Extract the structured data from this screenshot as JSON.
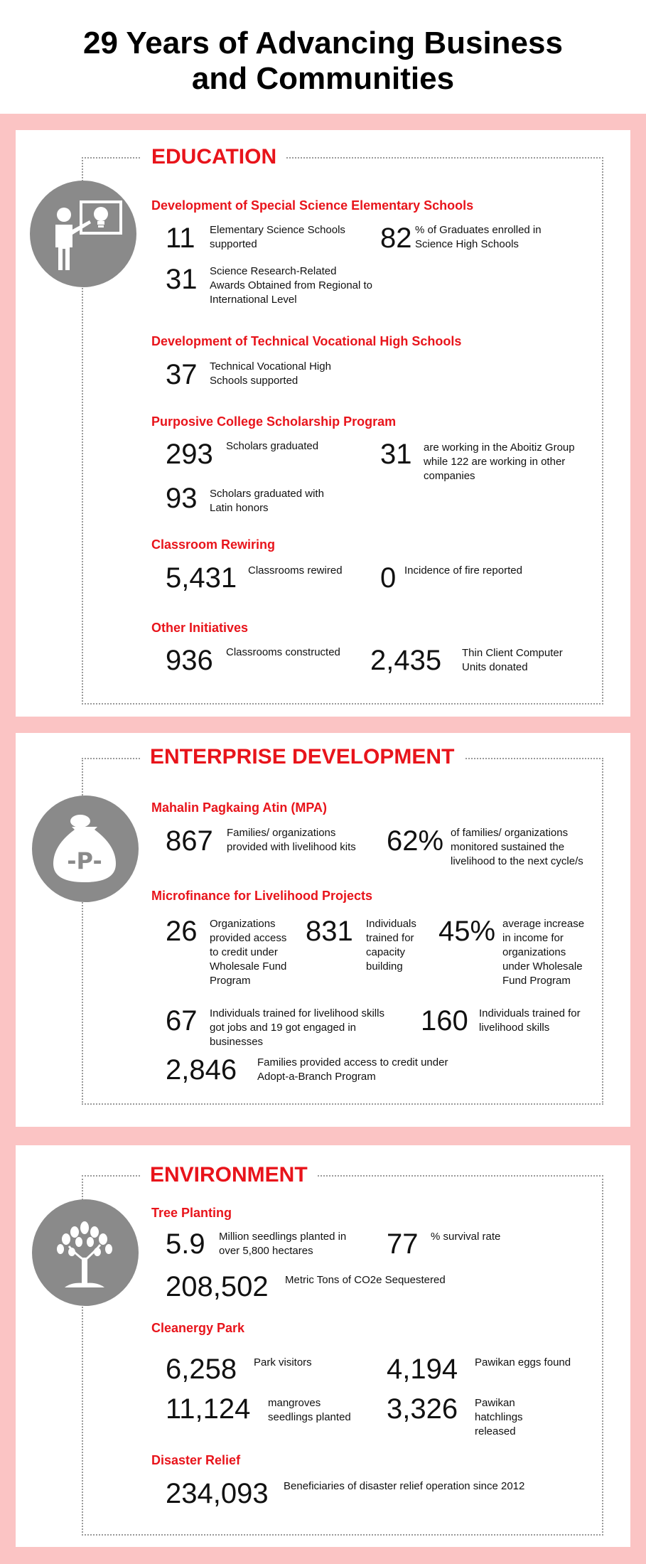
{
  "title": {
    "line1": "29 Years of Advancing Business",
    "line2": "and Communities"
  },
  "icons": {
    "education": "teacher-icon",
    "enterprise": "money-bag-icon",
    "environment": "tree-icon"
  },
  "colors": {
    "accent": "#e8141b",
    "background": "#fbc4c4",
    "icon_circle": "#8a8a8a"
  },
  "education": {
    "title": "EDUCATION",
    "special_science": {
      "heading": "Development of Special Science Elementary Schools",
      "stats": [
        {
          "value": "11",
          "label": "Elementary Science  Schools supported"
        },
        {
          "value": "82",
          "label": "% of Graduates enrolled in Science High Schools"
        },
        {
          "value": "31",
          "label": "Science Research-Related Awards Obtained from Regional to International Level"
        }
      ]
    },
    "techvoc": {
      "heading": "Development of Technical Vocational High Schools",
      "stats": [
        {
          "value": "37",
          "label": "Technical Vocational High Schools supported"
        }
      ]
    },
    "scholarship": {
      "heading": "Purposive College Scholarship Program",
      "stats": [
        {
          "value": "293",
          "label": "Scholars graduated"
        },
        {
          "value": "31",
          "label": "are working in the Aboitiz Group while 122 are working in other companies"
        },
        {
          "value": "93",
          "label": "Scholars graduated with Latin honors"
        }
      ]
    },
    "rewiring": {
      "heading": "Classroom Rewiring",
      "stats": [
        {
          "value": "5,431",
          "label": "Classrooms rewired"
        },
        {
          "value": "0",
          "label": "Incidence of fire reported"
        }
      ]
    },
    "other": {
      "heading": "Other Initiatives",
      "stats": [
        {
          "value": "936",
          "label": "Classrooms constructed"
        },
        {
          "value": "2,435",
          "label": "Thin Client Computer Units donated"
        }
      ]
    }
  },
  "enterprise": {
    "title": "ENTERPRISE DEVELOPMENT",
    "mpa": {
      "heading": "Mahalin Pagkaing Atin (MPA)",
      "stats": [
        {
          "value": "867",
          "label": "Families/ organizations provided with livelihood kits"
        },
        {
          "value": "62%",
          "label": "of families/ organizations monitored sustained the livelihood to the next cycle/s"
        }
      ]
    },
    "microfinance": {
      "heading": "Microfinance for Livelihood Projects",
      "stats": [
        {
          "value": "26",
          "label": "Organizations provided access to credit under Wholesale Fund Program"
        },
        {
          "value": "831",
          "label": "Individuals trained for capacity building"
        },
        {
          "value": "45%",
          "label": "average increase in income for organizations under Wholesale Fund Program"
        },
        {
          "value": "67",
          "label": "Individuals trained for livelihood skills got jobs and 19 got engaged in businesses"
        },
        {
          "value": "160",
          "label": "Individuals trained for livelihood skills"
        },
        {
          "value": "2,846",
          "label": "Families provided access to credit under Adopt-a-Branch Program"
        }
      ]
    }
  },
  "environment": {
    "title": "ENVIRONMENT",
    "tree_planting": {
      "heading": "Tree Planting",
      "stats": [
        {
          "value": "5.9",
          "label": "Million seedlings planted in over 5,800 hectares"
        },
        {
          "value": "77",
          "label": "% survival rate"
        },
        {
          "value": "208,502",
          "label": "Metric Tons of CO2e Sequestered"
        }
      ]
    },
    "cleanergy": {
      "heading": "Cleanergy Park",
      "stats": [
        {
          "value": "6,258",
          "label": "Park visitors"
        },
        {
          "value": "4,194",
          "label": "Pawikan eggs found"
        },
        {
          "value": "11,124",
          "label": "mangroves seedlings planted"
        },
        {
          "value": "3,326",
          "label": "Pawikan hatchlings released"
        }
      ]
    },
    "disaster": {
      "heading": "Disaster Relief",
      "stats": [
        {
          "value": "234,093",
          "label": "Beneficiaries of disaster relief operation since 2012"
        }
      ]
    }
  }
}
